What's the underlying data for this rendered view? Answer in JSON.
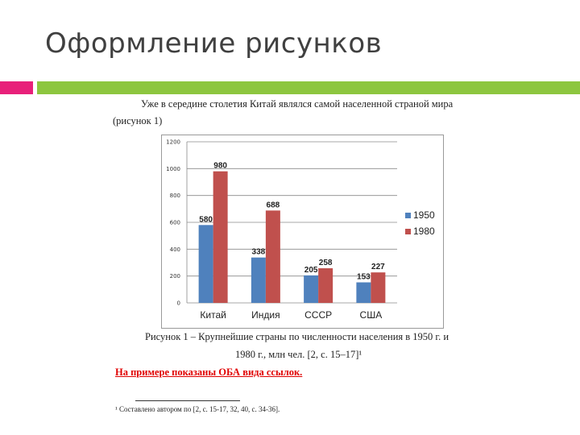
{
  "slide": {
    "title": "Оформление рисунков",
    "accent_colors": {
      "pink": "#e8207a",
      "green": "#8dc63f"
    }
  },
  "document": {
    "intro_line1": "Уже в середине столетия Китай являлся самой населенной страной мира",
    "intro_line2": "(рисунок 1)",
    "caption_line1": "Рисунок 1 – Крупнейшие страны по численности населения в 1950 г. и",
    "caption_line2": "1980 г., млн чел. [2, с. 15–17]¹",
    "red_note": "На примере показаны ОБА вида ссылок.",
    "footnote": "¹ Составлено автором по [2, с. 15-17, 32, 40, с. 34-36]."
  },
  "chart_data": {
    "type": "bar",
    "categories": [
      "Китай",
      "Индия",
      "СССР",
      "США"
    ],
    "series": [
      {
        "name": "1950",
        "values": [
          580,
          338,
          205,
          153
        ],
        "color": "#4f81bd"
      },
      {
        "name": "1980",
        "values": [
          980,
          688,
          258,
          227
        ],
        "color": "#c0504d"
      }
    ],
    "ylim": [
      0,
      1200
    ],
    "yticks": [
      0,
      200,
      400,
      600,
      800,
      1000,
      1200
    ],
    "grid": true,
    "legend": "right"
  }
}
